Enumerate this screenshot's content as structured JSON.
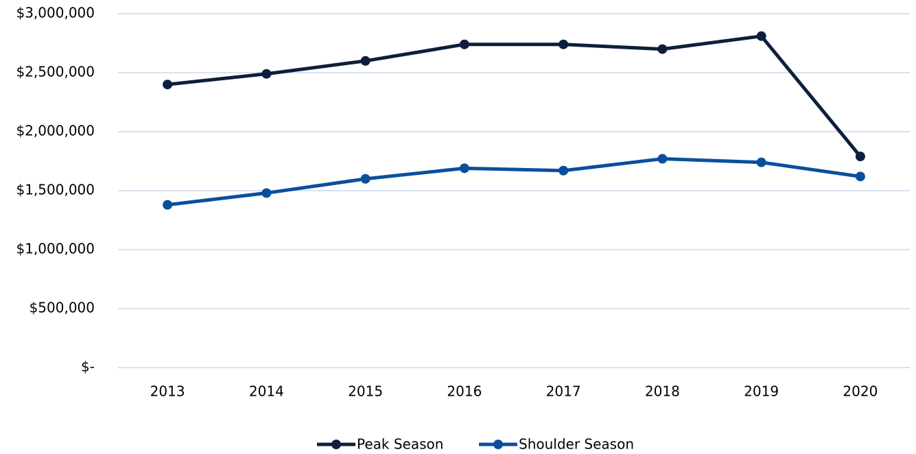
{
  "chart_data": {
    "type": "line",
    "categories": [
      "2013",
      "2014",
      "2015",
      "2016",
      "2017",
      "2018",
      "2019",
      "2020"
    ],
    "series": [
      {
        "name": "Peak Season",
        "color": "#0e1f3d",
        "values": [
          2400000,
          2490000,
          2600000,
          2740000,
          2740000,
          2700000,
          2810000,
          1790000
        ]
      },
      {
        "name": "Shoulder Season",
        "color": "#0b4f9c",
        "values": [
          1380000,
          1480000,
          1600000,
          1690000,
          1670000,
          1770000,
          1740000,
          1620000
        ]
      }
    ],
    "ylim": [
      0,
      3000000
    ],
    "yticks": [
      {
        "value": 0,
        "label": "$-"
      },
      {
        "value": 500000,
        "label": "$500,000"
      },
      {
        "value": 1000000,
        "label": "$1,000,000"
      },
      {
        "value": 1500000,
        "label": "$1,500,000"
      },
      {
        "value": 2000000,
        "label": "$2,000,000"
      },
      {
        "value": 2500000,
        "label": "$2,500,000"
      },
      {
        "value": 3000000,
        "label": "$3,000,000"
      }
    ],
    "grid": true,
    "legend": "bottom"
  }
}
